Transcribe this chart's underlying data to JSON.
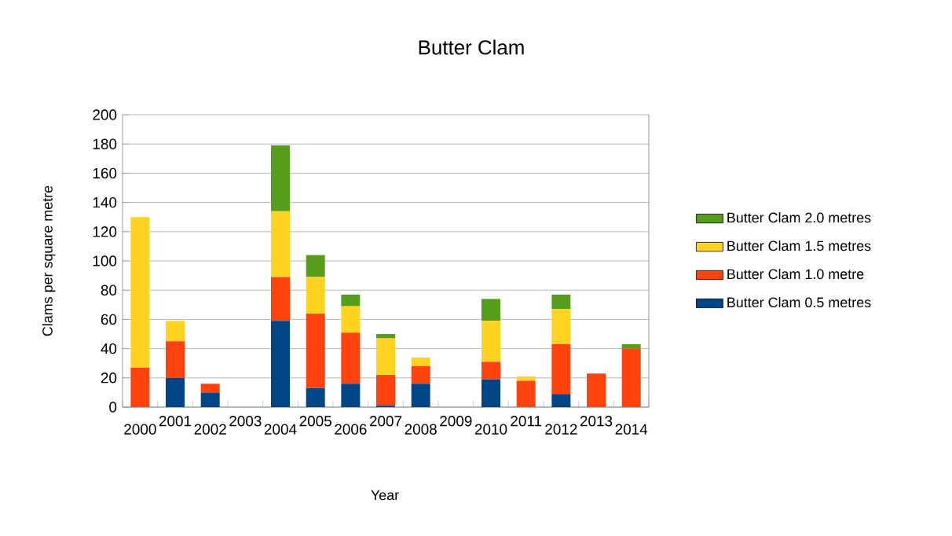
{
  "chart_data": {
    "type": "bar",
    "title": "Butter Clam",
    "xlabel": "Year",
    "ylabel": "Clams per square metre",
    "categories": [
      "2000",
      "2001",
      "2002",
      "2003",
      "2004",
      "2005",
      "2006",
      "2007",
      "2008",
      "2009",
      "2010",
      "2011",
      "2012",
      "2013",
      "2014"
    ],
    "stacked": true,
    "series": [
      {
        "name": "Butter Clam 0.5 metres",
        "color": "#004586",
        "values": [
          0,
          20,
          10,
          0,
          59,
          13,
          16,
          1,
          16,
          0,
          19,
          0,
          9,
          0,
          0
        ]
      },
      {
        "name": "Butter Clam 1.0 metre",
        "color": "#ff420e",
        "values": [
          27,
          25,
          6,
          0,
          30,
          51,
          35,
          21,
          12,
          0,
          12,
          18,
          34,
          23,
          40
        ]
      },
      {
        "name": "Butter Clam 1.5 metres",
        "color": "#ffd320",
        "values": [
          103,
          14,
          0,
          0,
          45,
          25,
          18,
          25,
          6,
          0,
          28,
          3,
          24,
          0,
          0
        ]
      },
      {
        "name": "Butter Clam 2.0 metres",
        "color": "#579d1c",
        "values": [
          0,
          0,
          0,
          0,
          45,
          15,
          8,
          3,
          0,
          0,
          15,
          0,
          10,
          0,
          3
        ]
      }
    ],
    "ylim": [
      0,
      200
    ],
    "yticks": [
      0,
      20,
      40,
      60,
      80,
      100,
      120,
      140,
      160,
      180,
      200
    ],
    "grid": "y",
    "legend": "right"
  }
}
